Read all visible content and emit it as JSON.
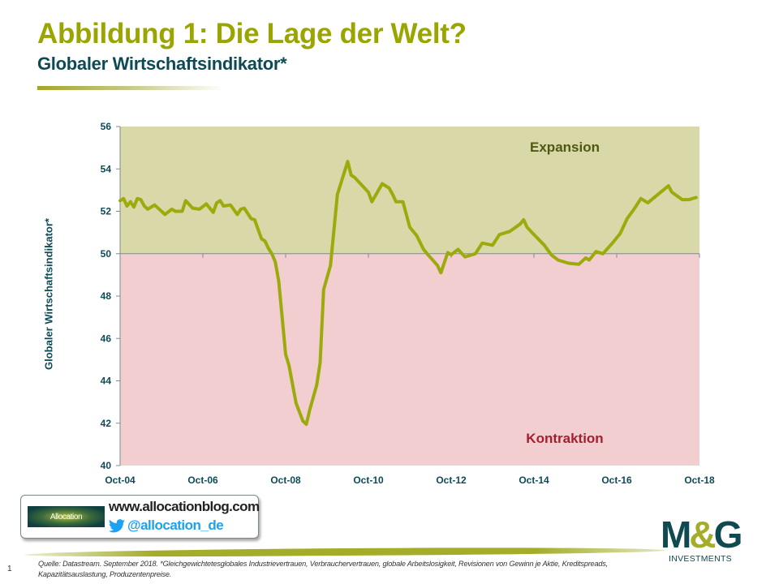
{
  "header": {
    "title": "Abbildung 1: Die Lage der Welt?",
    "subtitle": "Globaler Wirtschaftsindikator*"
  },
  "chart_data": {
    "type": "line",
    "ylabel": "Globaler Wirtschaftsindikator*",
    "xlabel": "",
    "ylim": [
      40,
      56
    ],
    "yticks": [
      40,
      42,
      44,
      46,
      48,
      50,
      52,
      54,
      56
    ],
    "xlim": [
      "2004-10",
      "2018-10"
    ],
    "xticks": [
      {
        "date": "2004-10",
        "label": "Oct-04"
      },
      {
        "date": "2006-10",
        "label": "Oct-06"
      },
      {
        "date": "2008-10",
        "label": "Oct-08"
      },
      {
        "date": "2010-10",
        "label": "Oct-10"
      },
      {
        "date": "2012-10",
        "label": "Oct-12"
      },
      {
        "date": "2014-10",
        "label": "Oct-14"
      },
      {
        "date": "2016-10",
        "label": "Oct-16"
      },
      {
        "date": "2018-10",
        "label": "Oct-18"
      }
    ],
    "threshold": 50,
    "regions": [
      {
        "label": "Expansion",
        "from": 50,
        "to": 56,
        "color": "#d9d8a9",
        "label_color": "#4e5a10"
      },
      {
        "label": "Kontraktion",
        "from": 40,
        "to": 50,
        "color": "#f2ced1",
        "label_color": "#a31f30"
      }
    ],
    "line_color": "#9caa0c",
    "grid": false,
    "series": [
      {
        "points": [
          [
            "2004-10",
            52.5
          ],
          [
            "2004-11",
            52.6
          ],
          [
            "2004-12",
            52.25
          ],
          [
            "2005-01",
            52.45
          ],
          [
            "2005-02",
            52.2
          ],
          [
            "2005-03",
            52.6
          ],
          [
            "2005-04",
            52.55
          ],
          [
            "2005-05",
            52.25
          ],
          [
            "2005-06",
            52.1
          ],
          [
            "2005-08",
            52.3
          ],
          [
            "2005-11",
            51.85
          ],
          [
            "2006-01",
            52.1
          ],
          [
            "2006-02",
            52.0
          ],
          [
            "2006-04",
            52.0
          ],
          [
            "2006-05",
            52.5
          ],
          [
            "2006-07",
            52.15
          ],
          [
            "2006-09",
            52.1
          ],
          [
            "2006-11",
            52.35
          ],
          [
            "2007-01",
            51.95
          ],
          [
            "2007-02",
            52.4
          ],
          [
            "2007-03",
            52.5
          ],
          [
            "2007-04",
            52.25
          ],
          [
            "2007-06",
            52.3
          ],
          [
            "2007-08",
            51.85
          ],
          [
            "2007-09",
            52.1
          ],
          [
            "2007-10",
            52.15
          ],
          [
            "2007-12",
            51.65
          ],
          [
            "2008-01",
            51.6
          ],
          [
            "2008-03",
            50.7
          ],
          [
            "2008-04",
            50.6
          ],
          [
            "2008-05",
            50.25
          ],
          [
            "2008-06",
            50.0
          ],
          [
            "2008-07",
            49.6
          ],
          [
            "2008-08",
            48.7
          ],
          [
            "2008-10",
            45.25
          ],
          [
            "2008-11",
            44.7
          ],
          [
            "2009-01",
            42.95
          ],
          [
            "2009-03",
            42.1
          ],
          [
            "2009-04",
            41.95
          ],
          [
            "2009-05",
            42.65
          ],
          [
            "2009-07",
            43.8
          ],
          [
            "2009-08",
            44.85
          ],
          [
            "2009-09",
            48.3
          ],
          [
            "2009-11",
            49.45
          ],
          [
            "2010-01",
            52.8
          ],
          [
            "2010-04",
            54.35
          ],
          [
            "2010-05",
            53.7
          ],
          [
            "2010-06",
            53.6
          ],
          [
            "2010-10",
            52.9
          ],
          [
            "2010-11",
            52.45
          ],
          [
            "2011-02",
            53.3
          ],
          [
            "2011-04",
            53.1
          ],
          [
            "2011-05",
            52.8
          ],
          [
            "2011-06",
            52.45
          ],
          [
            "2011-08",
            52.45
          ],
          [
            "2011-10",
            51.25
          ],
          [
            "2011-12",
            50.85
          ],
          [
            "2012-02",
            50.2
          ],
          [
            "2012-03",
            50.0
          ],
          [
            "2012-06",
            49.45
          ],
          [
            "2012-07",
            49.1
          ],
          [
            "2012-09",
            50.05
          ],
          [
            "2012-10",
            49.95
          ],
          [
            "2012-12",
            50.2
          ],
          [
            "2013-02",
            49.85
          ],
          [
            "2013-05",
            50.0
          ],
          [
            "2013-07",
            50.5
          ],
          [
            "2013-10",
            50.4
          ],
          [
            "2013-12",
            50.9
          ],
          [
            "2014-03",
            51.05
          ],
          [
            "2014-06",
            51.4
          ],
          [
            "2014-07",
            51.6
          ],
          [
            "2014-08",
            51.25
          ],
          [
            "2014-10",
            50.9
          ],
          [
            "2015-01",
            50.4
          ],
          [
            "2015-03",
            49.95
          ],
          [
            "2015-05",
            49.7
          ],
          [
            "2015-08",
            49.55
          ],
          [
            "2015-11",
            49.5
          ],
          [
            "2016-01",
            49.8
          ],
          [
            "2016-02",
            49.7
          ],
          [
            "2016-04",
            50.1
          ],
          [
            "2016-06",
            50.0
          ],
          [
            "2016-09",
            50.55
          ],
          [
            "2016-11",
            50.95
          ],
          [
            "2017-01",
            51.65
          ],
          [
            "2017-03",
            52.1
          ],
          [
            "2017-05",
            52.6
          ],
          [
            "2017-07",
            52.4
          ],
          [
            "2017-10",
            52.8
          ],
          [
            "2018-01",
            53.2
          ],
          [
            "2018-02",
            52.9
          ],
          [
            "2018-05",
            52.55
          ],
          [
            "2018-07",
            52.55
          ],
          [
            "2018-09",
            52.65
          ]
        ]
      }
    ]
  },
  "footer": {
    "blog_url": "www.allocationblog.com",
    "twitter_handle": "@allocation_de",
    "allocation_logo_text": "Allocation",
    "source": "Quelle: Datastream. September 2018. *Gleichgewichtetesglobales Industrievertrauen, Verbrauchervertrauen, globale Arbeitslosigkeit, Revisionen von Gewinn je Aktie, Kreditspreads, Kapazitätsauslastung, Produzentenpreise.",
    "page_number": "1",
    "brand_logo": {
      "mark": "M&G",
      "tagline": "INVESTMENTS"
    }
  }
}
